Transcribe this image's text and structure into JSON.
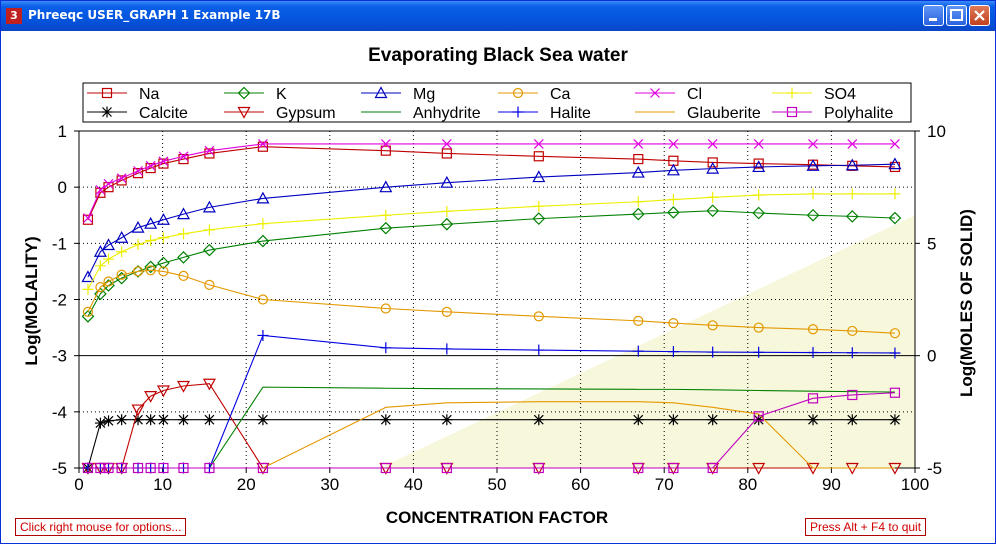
{
  "window": {
    "title": "Phreeqc USER_GRAPH 1 Example 17B",
    "icon_label": "3",
    "status_left": "Click right mouse for options...",
    "status_right": "Press Alt + F4 to quit"
  },
  "colors": {
    "Na": "#c00000",
    "K": "#008000",
    "Mg": "#0000c0",
    "Ca": "#e39800",
    "Cl": "#e000e0",
    "SO4": "#eeee00",
    "Calcite": "#000000",
    "Gypsum": "#c00000",
    "Anhydrite": "#008000",
    "Halite": "#0000e0",
    "Glauberite": "#e39800",
    "Polyhalite": "#c000c0",
    "background_band": "#f7f7dc",
    "axis": "#000000"
  },
  "chart_data": {
    "type": "line",
    "title": "Evaporating Black Sea water",
    "xlabel": "CONCENTRATION FACTOR",
    "ylabel": "Log(MOLALITY)",
    "y2label": "Log(MOLES OF SOLID)",
    "xlim": [
      0,
      100
    ],
    "ylim": [
      -5,
      1
    ],
    "y2lim": [
      -5,
      10
    ],
    "xticks": [
      0,
      10,
      20,
      30,
      40,
      50,
      60,
      70,
      80,
      90,
      100
    ],
    "yticks": [
      1,
      0,
      -1,
      -2,
      -3,
      -4,
      -5
    ],
    "y2ticks": [
      10,
      5,
      0,
      -5
    ],
    "grid": true,
    "legend_position": "top",
    "series": [
      {
        "name": "Na",
        "axis": "y",
        "marker": "square",
        "x": [
          1.07,
          2.56,
          3.53,
          5.1,
          7.06,
          8.57,
          10.1,
          12.5,
          15.6,
          22.0,
          36.7,
          44.0,
          55.0,
          66.9,
          71.1,
          75.8,
          81.3,
          87.8,
          92.5,
          97.6
        ],
        "y": [
          -0.58,
          -0.1,
          0.0,
          0.12,
          0.25,
          0.34,
          0.42,
          0.5,
          0.6,
          0.72,
          0.65,
          0.6,
          0.55,
          0.5,
          0.47,
          0.44,
          0.42,
          0.4,
          0.38,
          0.36
        ]
      },
      {
        "name": "K",
        "axis": "y",
        "marker": "diamond",
        "x": [
          1.07,
          2.56,
          3.53,
          5.1,
          7.06,
          8.57,
          10.1,
          12.5,
          15.6,
          22.0,
          36.7,
          44.0,
          55.0,
          66.9,
          71.1,
          75.8,
          81.3,
          87.8,
          92.5,
          97.6
        ],
        "y": [
          -2.3,
          -1.9,
          -1.75,
          -1.62,
          -1.5,
          -1.42,
          -1.35,
          -1.25,
          -1.12,
          -0.96,
          -0.73,
          -0.66,
          -0.56,
          -0.48,
          -0.45,
          -0.42,
          -0.46,
          -0.5,
          -0.52,
          -0.55
        ]
      },
      {
        "name": "Mg",
        "axis": "y",
        "marker": "triangle-up",
        "x": [
          1.07,
          2.56,
          3.53,
          5.1,
          7.06,
          8.57,
          10.1,
          12.5,
          15.6,
          22.0,
          36.7,
          44.0,
          55.0,
          66.9,
          71.1,
          75.8,
          81.3,
          87.8,
          92.5,
          97.6
        ],
        "y": [
          -1.6,
          -1.15,
          -1.03,
          -0.9,
          -0.72,
          -0.65,
          -0.58,
          -0.48,
          -0.36,
          -0.2,
          0.0,
          0.08,
          0.18,
          0.26,
          0.3,
          0.33,
          0.36,
          0.38,
          0.39,
          0.41
        ]
      },
      {
        "name": "Ca",
        "axis": "y",
        "marker": "circle",
        "x": [
          1.07,
          2.56,
          3.53,
          5.1,
          7.06,
          8.57,
          10.1,
          12.5,
          15.6,
          22.0,
          36.7,
          44.0,
          55.0,
          66.9,
          71.1,
          75.8,
          81.3,
          87.8,
          92.5,
          97.6
        ],
        "y": [
          -2.22,
          -1.78,
          -1.68,
          -1.56,
          -1.5,
          -1.48,
          -1.5,
          -1.58,
          -1.74,
          -2.0,
          -2.16,
          -2.22,
          -2.3,
          -2.38,
          -2.42,
          -2.46,
          -2.5,
          -2.53,
          -2.56,
          -2.6
        ]
      },
      {
        "name": "Cl",
        "axis": "y",
        "marker": "x",
        "x": [
          1.07,
          2.56,
          3.53,
          5.1,
          7.06,
          8.57,
          10.1,
          12.5,
          15.6,
          22.0,
          36.7,
          44.0,
          55.0,
          66.9,
          71.1,
          75.8,
          81.3,
          87.8,
          92.5,
          97.6
        ],
        "y": [
          -0.55,
          -0.05,
          0.06,
          0.16,
          0.29,
          0.38,
          0.46,
          0.55,
          0.65,
          0.77,
          0.77,
          0.77,
          0.77,
          0.77,
          0.77,
          0.77,
          0.77,
          0.77,
          0.77,
          0.77
        ]
      },
      {
        "name": "SO4",
        "axis": "y",
        "marker": "plus",
        "x": [
          1.07,
          2.56,
          3.53,
          5.1,
          7.06,
          8.57,
          10.1,
          12.5,
          15.6,
          22.0,
          36.7,
          44.0,
          55.0,
          66.9,
          71.1,
          75.8,
          81.3,
          87.8,
          92.5,
          97.6
        ],
        "y": [
          -1.82,
          -1.4,
          -1.28,
          -1.15,
          -1.02,
          -0.95,
          -0.9,
          -0.83,
          -0.76,
          -0.65,
          -0.5,
          -0.43,
          -0.34,
          -0.26,
          -0.22,
          -0.18,
          -0.14,
          -0.12,
          -0.12,
          -0.12
        ]
      },
      {
        "name": "Calcite",
        "axis": "y2",
        "marker": "star",
        "x": [
          1.07,
          2.56,
          3.53,
          5.1,
          7.06,
          8.57,
          10.1,
          12.5,
          15.6,
          22.0,
          36.7,
          44.0,
          55.0,
          66.9,
          71.1,
          75.8,
          81.3,
          87.8,
          92.5,
          97.6
        ],
        "y": [
          -5.0,
          -3.0,
          -2.9,
          -2.85,
          -2.85,
          -2.85,
          -2.85,
          -2.85,
          -2.85,
          -2.85,
          -2.85,
          -2.85,
          -2.85,
          -2.85,
          -2.85,
          -2.85,
          -2.85,
          -2.85,
          -2.85,
          -2.85
        ]
      },
      {
        "name": "Gypsum",
        "axis": "y2",
        "marker": "triangle-down",
        "x": [
          1.07,
          2.56,
          3.53,
          5.1,
          7.06,
          8.57,
          10.1,
          12.5,
          15.6,
          22.0,
          36.7,
          44.0,
          55.0,
          66.9,
          71.1,
          75.8,
          81.3,
          87.8,
          92.5,
          97.6
        ],
        "y": [
          -5.0,
          -5.0,
          -5.0,
          -5.0,
          -2.4,
          -1.8,
          -1.55,
          -1.35,
          -1.25,
          -5.0,
          -5.0,
          -5.0,
          -5.0,
          -5.0,
          -5.0,
          -5.0,
          -5.0,
          -5.0,
          -5.0,
          -5.0
        ]
      },
      {
        "name": "Anhydrite",
        "axis": "y2",
        "marker": "none",
        "x": [
          1.07,
          2.56,
          3.53,
          5.1,
          7.06,
          8.57,
          10.1,
          12.5,
          15.6,
          22.0,
          36.7,
          44.0,
          55.0,
          66.9,
          71.1,
          75.8,
          81.3,
          87.8,
          92.5,
          97.6
        ],
        "y": [
          -5.0,
          -5.0,
          -5.0,
          -5.0,
          -5.0,
          -5.0,
          -5.0,
          -5.0,
          -5.0,
          -1.4,
          -1.45,
          -1.47,
          -1.48,
          -1.5,
          -1.5,
          -1.52,
          -1.55,
          -1.58,
          -1.6,
          -1.62
        ]
      },
      {
        "name": "Halite",
        "axis": "y2",
        "marker": "plus",
        "x": [
          1.07,
          2.56,
          3.53,
          5.1,
          7.06,
          8.57,
          10.1,
          12.5,
          15.6,
          22.0,
          36.7,
          44.0,
          55.0,
          66.9,
          71.1,
          75.8,
          81.3,
          87.8,
          92.5,
          97.6
        ],
        "y": [
          -5.0,
          -5.0,
          -5.0,
          -5.0,
          -5.0,
          -5.0,
          -5.0,
          -5.0,
          -5.0,
          0.9,
          0.35,
          0.3,
          0.25,
          0.2,
          0.18,
          0.16,
          0.15,
          0.14,
          0.13,
          0.12
        ]
      },
      {
        "name": "Glauberite",
        "axis": "y2",
        "marker": "none",
        "x": [
          1.07,
          2.56,
          3.53,
          5.1,
          7.06,
          8.57,
          10.1,
          12.5,
          15.6,
          22.0,
          36.7,
          44.0,
          55.0,
          66.9,
          71.1,
          75.8,
          81.3,
          87.8,
          92.5,
          97.6
        ],
        "y": [
          -5.0,
          -5.0,
          -5.0,
          -5.0,
          -5.0,
          -5.0,
          -5.0,
          -5.0,
          -5.0,
          -5.0,
          -2.3,
          -2.1,
          -2.05,
          -2.05,
          -2.1,
          -2.3,
          -2.6,
          -5.0,
          -5.0,
          -5.0
        ]
      },
      {
        "name": "Polyhalite",
        "axis": "y2",
        "marker": "square",
        "x": [
          1.07,
          2.56,
          3.53,
          5.1,
          7.06,
          8.57,
          10.1,
          12.5,
          15.6,
          22.0,
          36.7,
          44.0,
          55.0,
          66.9,
          71.1,
          75.8,
          81.3,
          87.8,
          92.5,
          97.6
        ],
        "y": [
          -5.0,
          -5.0,
          -5.0,
          -5.0,
          -5.0,
          -5.0,
          -5.0,
          -5.0,
          -5.0,
          -5.0,
          -5.0,
          -5.0,
          -5.0,
          -5.0,
          -5.0,
          -5.0,
          -2.7,
          -1.9,
          -1.75,
          -1.65
        ]
      }
    ]
  }
}
